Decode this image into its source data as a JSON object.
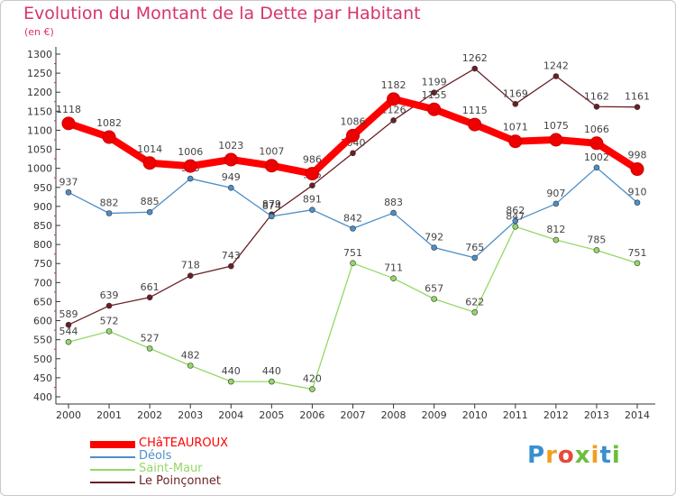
{
  "title": "Evolution du Montant de la Dette par Habitant",
  "subtitle": "(en €)",
  "logo_text": "Proxiti",
  "chart_data": {
    "type": "line",
    "categories": [
      "2000",
      "2001",
      "2002",
      "2003",
      "2004",
      "2005",
      "2006",
      "2007",
      "2008",
      "2009",
      "2010",
      "2011",
      "2012",
      "2013",
      "2014"
    ],
    "ylim": [
      400,
      1300
    ],
    "yticks": [
      400,
      450,
      500,
      550,
      600,
      650,
      700,
      750,
      800,
      850,
      900,
      950,
      1000,
      1050,
      1100,
      1150,
      1200,
      1250,
      1300
    ],
    "grid": false,
    "legend_position": "bottom-left",
    "series": [
      {
        "name": "CHâTEAUROUX",
        "color": "#ff0000",
        "values": [
          1118,
          1082,
          1014,
          1006,
          1023,
          1007,
          986,
          1086,
          1182,
          1155,
          1115,
          1071,
          1075,
          1066,
          998
        ]
      },
      {
        "name": "Déols",
        "color": "#4d8fc8",
        "values": [
          937,
          882,
          885,
          973,
          949,
          874,
          891,
          842,
          883,
          792,
          765,
          862,
          907,
          1002,
          910
        ]
      },
      {
        "name": "Saint-Maur",
        "color": "#94d866",
        "values": [
          544,
          572,
          527,
          482,
          440,
          440,
          420,
          751,
          711,
          657,
          622,
          847,
          812,
          785,
          751
        ]
      },
      {
        "name": "Le Poinçonnet",
        "color": "#6b1f24",
        "values": [
          589,
          639,
          661,
          718,
          743,
          879,
          955,
          1040,
          1126,
          1199,
          1262,
          1169,
          1242,
          1162,
          1161
        ]
      }
    ]
  }
}
